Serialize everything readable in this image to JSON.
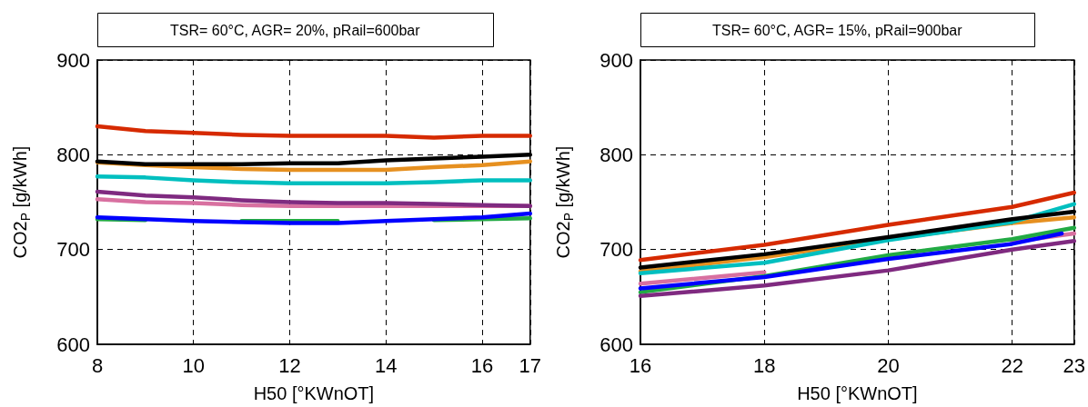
{
  "chart_data": [
    {
      "type": "line",
      "title": "TSR= 60°C, AGR= 20%, pRail=600bar",
      "xlabel": "H50 [°KWnOT]",
      "ylabel": "CO2$_{P}$ [g/kWh]",
      "x": [
        8,
        9,
        10,
        11,
        12,
        13,
        14,
        15,
        16,
        17
      ],
      "xlim": [
        8,
        17
      ],
      "xticks": [
        8,
        10,
        12,
        14,
        16,
        17
      ],
      "ylim": [
        600,
        900
      ],
      "yticks": [
        600,
        700,
        800,
        900
      ],
      "grid": true,
      "marker": "none",
      "line_style": "solid",
      "series": [
        {
          "color": "#d62a00",
          "values": [
            830,
            825,
            823,
            821,
            820,
            820,
            820,
            818,
            820,
            820
          ]
        },
        {
          "color": "#e69020",
          "values": [
            792,
            789,
            787,
            785,
            784,
            784,
            784,
            787,
            789,
            793
          ]
        },
        {
          "color": "#000000",
          "values": [
            793,
            790,
            790,
            790,
            791,
            791,
            794,
            796,
            798,
            800
          ]
        },
        {
          "color": "#00bfbf",
          "values": [
            777,
            776,
            773,
            771,
            770,
            770,
            770,
            771,
            773,
            773
          ]
        },
        {
          "color": "#d870a0",
          "values": [
            753,
            750,
            749,
            747,
            746,
            746,
            746,
            746,
            746,
            746
          ]
        },
        {
          "color": "#7f2a80",
          "values": [
            761,
            757,
            755,
            752,
            750,
            749,
            749,
            748,
            747,
            746
          ]
        },
        {
          "color": "#22aa44",
          "values": [
            732,
            731,
            null,
            730,
            730,
            730,
            null,
            731,
            732,
            733
          ]
        },
        {
          "color": "#0000ff",
          "values": [
            734,
            732,
            730,
            729,
            728,
            728,
            730,
            732,
            734,
            738
          ]
        }
      ]
    },
    {
      "type": "line",
      "title": "TSR= 60°C, AGR= 15%, pRail=900bar",
      "xlabel": "H50 [°KWnOT]",
      "ylabel": "CO2$_{P}$ [g/kWh]",
      "x": [
        16,
        18,
        20,
        22,
        23
      ],
      "xlim": [
        16,
        23
      ],
      "xticks": [
        16,
        18,
        20,
        22,
        23
      ],
      "ylim": [
        600,
        900
      ],
      "yticks": [
        600,
        700,
        800,
        900
      ],
      "grid": true,
      "marker": "none",
      "line_style": "solid",
      "series": [
        {
          "color": "#d62a00",
          "values": [
            689,
            705,
            726,
            745,
            760
          ]
        },
        {
          "color": "#e69020",
          "values": [
            677,
            692,
            711,
            728,
            734
          ]
        },
        {
          "color": "#00bfbf",
          "values": [
            675,
            686,
            710,
            729,
            748
          ]
        },
        {
          "color": "#000000",
          "values": [
            681,
            695,
            713,
            732,
            740
          ]
        },
        {
          "color": "#d870a0",
          "values": [
            664,
            676,
            null,
            708,
            717
          ]
        },
        {
          "color": "#22aa44",
          "values": [
            655,
            672,
            694,
            711,
            723
          ]
        },
        {
          "color": "#0000ff",
          "x": [
            16,
            18,
            20,
            22,
            22.8
          ],
          "values": [
            659,
            671,
            690,
            706,
            717
          ]
        },
        {
          "color": "#7f2a80",
          "values": [
            651,
            662,
            678,
            700,
            709
          ]
        }
      ]
    }
  ]
}
